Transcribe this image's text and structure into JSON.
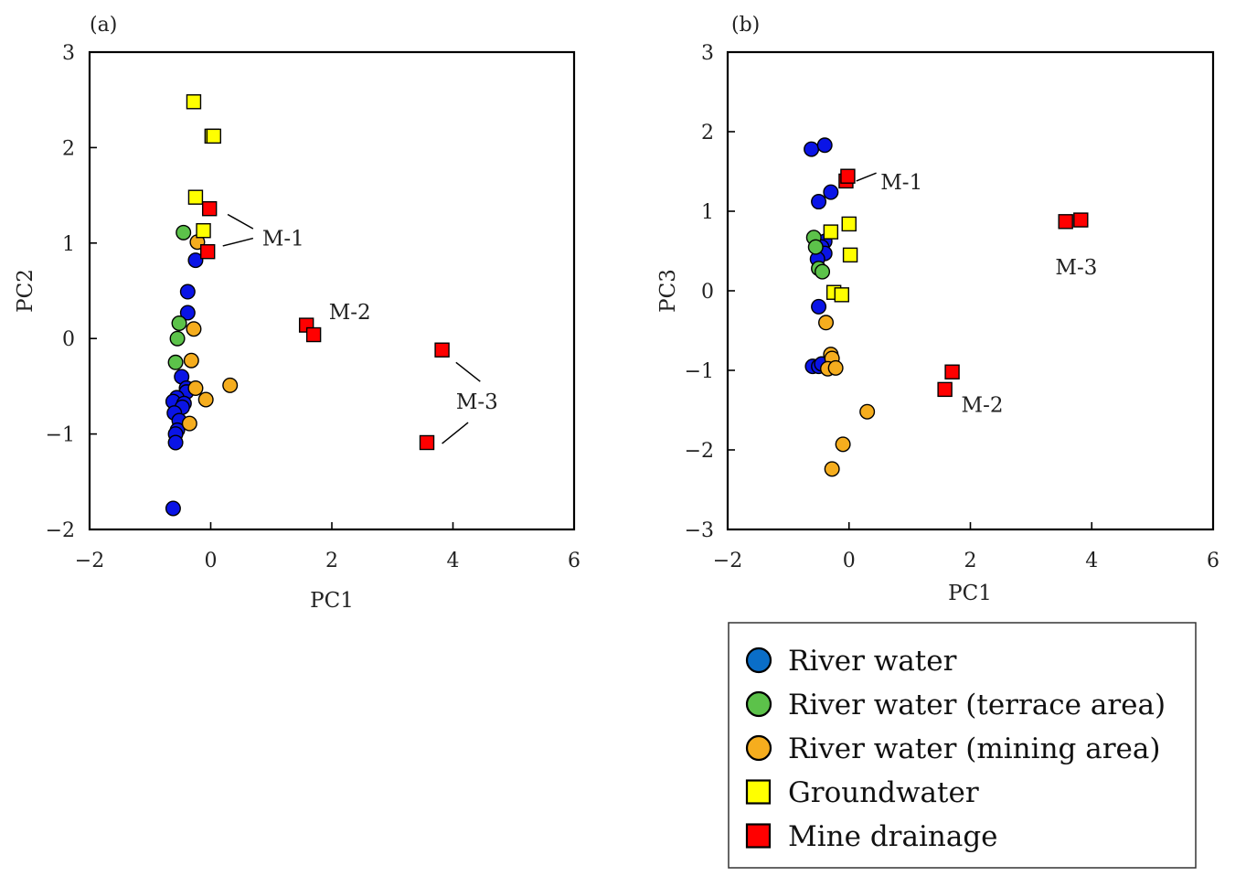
{
  "styles": {
    "River water": {
      "shape": "circle",
      "color": "#0a14e6"
    },
    "River water (terrace area)": {
      "shape": "circle",
      "color": "#5cc24a"
    },
    "River water (mining area)": {
      "shape": "circle",
      "color": "#f5ad1e"
    },
    "Groundwater": {
      "shape": "square",
      "color": "#ffff00"
    },
    "Mine drainage": {
      "shape": "square",
      "color": "#ff0000"
    }
  },
  "legend": {
    "entries": [
      {
        "label": "River water",
        "shape": "circle",
        "color": "#0a6ec8"
      },
      {
        "label": "River water (terrace area)",
        "shape": "circle",
        "color": "#5cc24a"
      },
      {
        "label": "River water (mining area)",
        "shape": "circle",
        "color": "#f5ad1e"
      },
      {
        "label": "Groundwater",
        "shape": "square",
        "color": "#ffff00"
      },
      {
        "label": "Mine drainage",
        "shape": "square",
        "color": "#ff0000"
      }
    ]
  },
  "chart_data": [
    {
      "type": "scatter",
      "panel_label": "(a)",
      "xlabel": "PC1",
      "ylabel": "PC2",
      "xlim": [
        -2,
        6
      ],
      "ylim": [
        -2,
        3
      ],
      "xticks": [
        "−2",
        "0",
        "2",
        "4",
        "6"
      ],
      "yticks": [
        "−2",
        "−1",
        "0",
        "1",
        "2",
        "3"
      ],
      "series": [
        {
          "name": "River water",
          "points": [
            [
              -0.25,
              0.82
            ],
            [
              -0.38,
              0.49
            ],
            [
              -0.38,
              0.27
            ],
            [
              -0.48,
              -0.4
            ],
            [
              -0.4,
              -0.52
            ],
            [
              -0.4,
              -0.56
            ],
            [
              -0.56,
              -0.62
            ],
            [
              -0.62,
              -0.66
            ],
            [
              -0.44,
              -0.68
            ],
            [
              -0.47,
              -0.72
            ],
            [
              -0.6,
              -0.78
            ],
            [
              -0.52,
              -0.86
            ],
            [
              -0.55,
              -0.96
            ],
            [
              -0.58,
              -1.0
            ],
            [
              -0.58,
              -1.09
            ],
            [
              -0.62,
              -1.78
            ]
          ]
        },
        {
          "name": "River water (terrace area)",
          "points": [
            [
              -0.45,
              1.11
            ],
            [
              -0.52,
              0.16
            ],
            [
              -0.55,
              0.0
            ],
            [
              -0.58,
              -0.25
            ]
          ]
        },
        {
          "name": "River water (mining area)",
          "points": [
            [
              -0.22,
              1.01
            ],
            [
              -0.28,
              0.1
            ],
            [
              -0.32,
              -0.23
            ],
            [
              -0.25,
              -0.52
            ],
            [
              -0.08,
              -0.64
            ],
            [
              0.32,
              -0.49
            ],
            [
              -0.35,
              -0.89
            ]
          ]
        },
        {
          "name": "Groundwater",
          "points": [
            [
              -0.28,
              2.48
            ],
            [
              0.02,
              2.12
            ],
            [
              0.05,
              2.12
            ],
            [
              -0.25,
              1.48
            ],
            [
              -0.12,
              1.13
            ]
          ]
        },
        {
          "name": "Mine drainage",
          "points": [
            [
              -0.02,
              1.36
            ],
            [
              -0.05,
              0.91
            ],
            [
              1.58,
              0.14
            ],
            [
              1.7,
              0.04
            ],
            [
              3.82,
              -0.12
            ],
            [
              3.57,
              -1.09
            ]
          ]
        }
      ],
      "annotations": [
        {
          "text": "M-1",
          "at": [
            0.85,
            1.05
          ],
          "lines": [
            [
              [
                0.28,
                1.3
              ],
              [
                0.7,
                1.15
              ]
            ],
            [
              [
                0.2,
                0.97
              ],
              [
                0.7,
                1.05
              ]
            ]
          ]
        },
        {
          "text": "M-2",
          "at": [
            1.95,
            0.28
          ],
          "lines": []
        },
        {
          "text": "M-3",
          "at": [
            4.05,
            -0.66
          ],
          "lines": [
            [
              [
                4.05,
                -0.25
              ],
              [
                4.45,
                -0.45
              ]
            ],
            [
              [
                3.82,
                -1.1
              ],
              [
                4.25,
                -0.88
              ]
            ]
          ]
        }
      ]
    },
    {
      "type": "scatter",
      "panel_label": "(b)",
      "xlabel": "PC1",
      "ylabel": "PC3",
      "xlim": [
        -2,
        6
      ],
      "ylim": [
        -3,
        3
      ],
      "xticks": [
        "−2",
        "0",
        "2",
        "4",
        "6"
      ],
      "yticks": [
        "−3",
        "−2",
        "−1",
        "0",
        "1",
        "2",
        "3"
      ],
      "series": [
        {
          "name": "River water",
          "points": [
            [
              -0.62,
              1.78
            ],
            [
              -0.4,
              1.83
            ],
            [
              -0.3,
              1.24
            ],
            [
              -0.5,
              1.12
            ],
            [
              -0.4,
              0.62
            ],
            [
              -0.45,
              0.55
            ],
            [
              -0.4,
              0.47
            ],
            [
              -0.52,
              0.4
            ],
            [
              -0.5,
              -0.2
            ],
            [
              -0.6,
              -0.95
            ],
            [
              -0.5,
              -0.95
            ],
            [
              -0.45,
              -0.92
            ]
          ]
        },
        {
          "name": "River water (terrace area)",
          "points": [
            [
              -0.58,
              0.67
            ],
            [
              -0.55,
              0.55
            ],
            [
              -0.5,
              0.28
            ],
            [
              -0.44,
              0.24
            ]
          ]
        },
        {
          "name": "River water (mining area)",
          "points": [
            [
              -0.38,
              -0.4
            ],
            [
              -0.3,
              -0.8
            ],
            [
              -0.28,
              -0.85
            ],
            [
              -0.35,
              -0.98
            ],
            [
              -0.22,
              -0.97
            ],
            [
              0.3,
              -1.52
            ],
            [
              -0.1,
              -1.93
            ],
            [
              -0.28,
              -2.24
            ]
          ]
        },
        {
          "name": "Groundwater",
          "points": [
            [
              -0.3,
              0.74
            ],
            [
              0.0,
              0.84
            ],
            [
              0.02,
              0.45
            ],
            [
              -0.25,
              -0.02
            ],
            [
              -0.12,
              -0.05
            ]
          ]
        },
        {
          "name": "Mine drainage",
          "points": [
            [
              -0.05,
              1.38
            ],
            [
              -0.02,
              1.44
            ],
            [
              3.57,
              0.87
            ],
            [
              3.82,
              0.89
            ],
            [
              1.7,
              -1.02
            ],
            [
              1.58,
              -1.24
            ]
          ]
        }
      ],
      "annotations": [
        {
          "text": "M-1",
          "at": [
            0.52,
            1.37
          ],
          "lines": [
            [
              [
                0.12,
                1.38
              ],
              [
                0.45,
                1.48
              ]
            ]
          ]
        },
        {
          "text": "M-3",
          "at": [
            3.4,
            0.3
          ],
          "lines": []
        },
        {
          "text": "M-2",
          "at": [
            1.85,
            -1.43
          ],
          "lines": []
        }
      ]
    }
  ]
}
